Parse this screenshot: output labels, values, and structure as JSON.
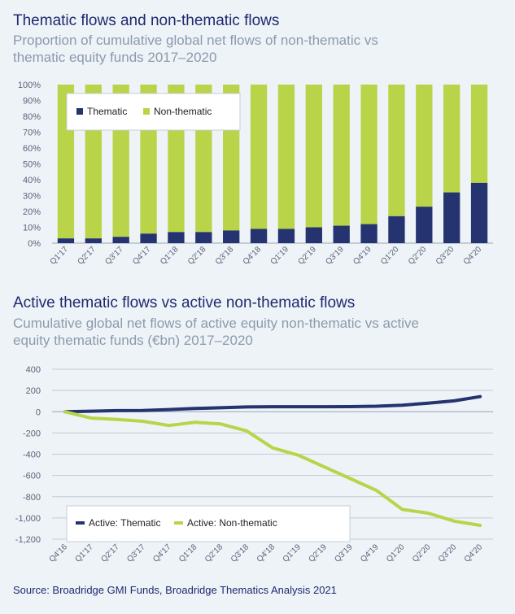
{
  "chart1": {
    "title": "Thematic flows and non-thematic flows",
    "subtitle_line1": "Proportion of cumulative global net flows of non-thematic vs",
    "subtitle_line2": "thematic equity funds 2017–2020"
  },
  "chart2": {
    "title": "Active thematic flows vs active non-thematic flows",
    "subtitle_line1": "Cumulative global net flows of active equity non-thematic vs active",
    "subtitle_line2": "equity thematic funds (€bn) 2017–2020"
  },
  "source": "Source: Broadridge GMI Funds, Broadridge Thematics Analysis 2021",
  "colors": {
    "thematic": "#253470",
    "non_thematic": "#b9d449",
    "text": "#1e2a6e",
    "axis": "#5a6378"
  },
  "chart_data": [
    {
      "type": "bar",
      "stacked": true,
      "title": "Thematic flows and non-thematic flows",
      "subtitle": "Proportion of cumulative global net flows of non-thematic vs thematic equity funds 2017–2020",
      "categories": [
        "Q1'17",
        "Q2'17",
        "Q3'17",
        "Q4'17",
        "Q1'18",
        "Q2'18",
        "Q3'18",
        "Q4'18",
        "Q1'19",
        "Q2'19",
        "Q3'19",
        "Q4'19",
        "Q1'20",
        "Q2'20",
        "Q3'20",
        "Q4'20"
      ],
      "series": [
        {
          "name": "Thematic",
          "values": [
            3,
            3,
            4,
            6,
            7,
            7,
            8,
            9,
            9,
            10,
            11,
            12,
            17,
            23,
            32,
            38
          ]
        },
        {
          "name": "Non-thematic",
          "values": [
            97,
            97,
            96,
            94,
            93,
            93,
            92,
            91,
            91,
            90,
            89,
            88,
            83,
            77,
            68,
            62
          ]
        }
      ],
      "y_ticks": [
        "0%",
        "10%",
        "20%",
        "30%",
        "40%",
        "50%",
        "60%",
        "70%",
        "80%",
        "90%",
        "100%"
      ],
      "ylim": [
        0,
        100
      ],
      "legend": "top-left",
      "grid": false
    },
    {
      "type": "line",
      "title": "Active thematic flows vs active non-thematic flows",
      "subtitle": "Cumulative global net flows of active equity non-thematic vs active equity thematic funds (€bn) 2017–2020",
      "x": [
        "Q4'16",
        "Q1'17",
        "Q2'17",
        "Q3'17",
        "Q4'17",
        "Q1'18",
        "Q2'18",
        "Q3'18",
        "Q4'18",
        "Q1'19",
        "Q2'19",
        "Q3'19",
        "Q4'19",
        "Q1'20",
        "Q2'20",
        "Q3'20",
        "Q4'20"
      ],
      "series": [
        {
          "name": "Active: Thematic",
          "values": [
            0,
            5,
            10,
            12,
            20,
            30,
            37,
            45,
            47,
            47,
            47,
            48,
            52,
            62,
            80,
            102,
            142
          ]
        },
        {
          "name": "Active: Non-thematic",
          "values": [
            0,
            -60,
            -72,
            -90,
            -130,
            -100,
            -115,
            -180,
            -340,
            -410,
            -520,
            -630,
            -740,
            -920,
            -955,
            -1030,
            -1070
          ]
        }
      ],
      "y_ticks": [
        "400",
        "200",
        "0",
        "-200",
        "-400",
        "-600",
        "-800",
        "-1,000",
        "-1,200"
      ],
      "ylim": [
        -1200,
        400
      ],
      "grid": true,
      "legend": "bottom-left"
    }
  ]
}
